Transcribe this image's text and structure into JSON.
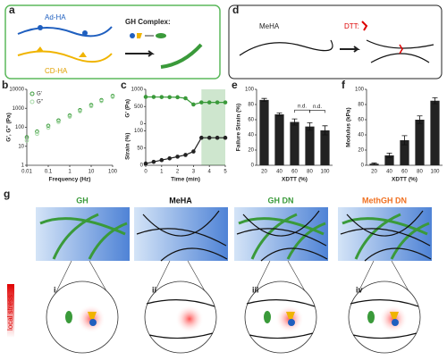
{
  "panels": {
    "a": "a",
    "d": "d",
    "g": "g"
  },
  "diagram": {
    "ad_ha": "Ad-HA",
    "cd_ha": "CD-HA",
    "gh_complex": "GH Complex:",
    "meha": "MeHA",
    "dtt": "DTT:",
    "g_titles": [
      "GH",
      "MeHA",
      "GH DN",
      "MethGH DN"
    ],
    "g_roman": [
      "i",
      "ii",
      "iii",
      "iv"
    ],
    "local_stress": "local stress"
  },
  "chart_data": [
    {
      "type": "scatter",
      "label": "b",
      "xlabel": "Frequency (Hz)",
      "ylabel": "G', G'' (Pa)",
      "log_x": true,
      "log_y": true,
      "x": [
        0.01,
        0.03,
        0.1,
        0.3,
        1,
        3,
        10,
        30,
        100
      ],
      "series": [
        {
          "name": "G'",
          "color": "#3a9a3a",
          "values": [
            30,
            60,
            120,
            230,
            420,
            800,
            1500,
            2700,
            4500
          ]
        },
        {
          "name": "G''",
          "color": "#a5d9a5",
          "values": [
            20,
            45,
            95,
            190,
            360,
            700,
            1300,
            2400,
            4000
          ]
        }
      ],
      "xlim": [
        0.01,
        100
      ],
      "ylim": [
        1,
        10000
      ],
      "xticks": [
        0.01,
        0.1,
        1,
        10,
        100
      ],
      "yticks": [
        1,
        10,
        100,
        1000,
        10000
      ],
      "legend": "upper left"
    },
    {
      "type": "line",
      "label": "c",
      "xlabel": "Time (min)",
      "ylabel": "G' (Pa)",
      "y2label": "Strain (%)",
      "x": [
        0,
        0.5,
        1,
        1.5,
        2,
        2.5,
        3,
        3.5,
        4,
        4.5,
        5
      ],
      "series": [
        {
          "color": "#3a9a3a",
          "values": [
            780,
            778,
            775,
            772,
            770,
            740,
            560,
            620,
            620,
            620,
            620
          ]
        },
        {
          "color": "#222222",
          "axis": "y2",
          "values": [
            5,
            10,
            15,
            20,
            25,
            30,
            40,
            80,
            80,
            80,
            80
          ]
        }
      ],
      "highlight_x": [
        3.5,
        5
      ],
      "xlim": [
        0,
        5
      ],
      "ylim": [
        0,
        1000
      ],
      "yticks": [
        0,
        500,
        1000
      ],
      "y2lim": [
        0,
        100
      ],
      "y2ticks": [
        0,
        50,
        100
      ],
      "xticks": [
        0,
        1,
        2,
        3,
        4,
        5
      ]
    },
    {
      "type": "bar",
      "label": "e",
      "xlabel": "XDTT (%)",
      "ylabel": "Failure Strain (%)",
      "categories": [
        "20",
        "40",
        "60",
        "80",
        "100"
      ],
      "values": [
        86,
        67,
        57,
        51,
        46
      ],
      "errors": [
        2,
        2,
        4,
        5,
        6
      ],
      "color": "#222222",
      "annotations": [
        "n.d.",
        "n.d."
      ],
      "ylim": [
        0,
        100
      ],
      "yticks": [
        0,
        20,
        40,
        60,
        80,
        100
      ]
    },
    {
      "type": "bar",
      "label": "f",
      "xlabel": "XDTT (%)",
      "ylabel": "Modulus (kPa)",
      "categories": [
        "20",
        "40",
        "60",
        "80",
        "100"
      ],
      "values": [
        2,
        13,
        33,
        60,
        85
      ],
      "errors": [
        1,
        3,
        6,
        5,
        4
      ],
      "color": "#222222",
      "ylim": [
        0,
        100
      ],
      "yticks": [
        0,
        20,
        40,
        60,
        80,
        100
      ]
    }
  ]
}
